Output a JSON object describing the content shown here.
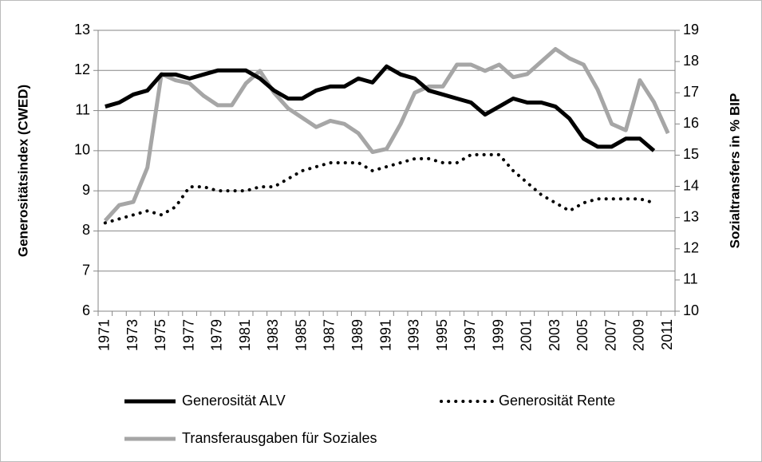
{
  "chart_data": {
    "type": "line",
    "categories": [
      "1971",
      null,
      "1973",
      null,
      "1975",
      null,
      "1977",
      null,
      "1979",
      null,
      "1981",
      null,
      "1983",
      null,
      "1985",
      null,
      "1987",
      null,
      "1989",
      null,
      "1991",
      null,
      "1993",
      null,
      "1995",
      null,
      "1997",
      null,
      "1999",
      null,
      "2001",
      null,
      "2003",
      null,
      "2005",
      null,
      "2007",
      null,
      "2009",
      null,
      "2011"
    ],
    "y_label": "Generositätsindex (CWED)",
    "y2_label": "Sozialtransfers in % BIP",
    "ylim": [
      6,
      13
    ],
    "yticks": [
      6,
      7,
      8,
      9,
      10,
      11,
      12,
      13
    ],
    "y2lim": [
      10,
      19
    ],
    "y2ticks": [
      10,
      11,
      12,
      13,
      14,
      15,
      16,
      17,
      18,
      19
    ],
    "grid": true,
    "legend": "bottom",
    "series": [
      {
        "name": "Generosität ALV",
        "color": "#000000",
        "style": "solid",
        "values": [
          11.1,
          11.2,
          11.4,
          11.5,
          11.9,
          11.9,
          11.8,
          11.9,
          12.0,
          12.0,
          12.0,
          11.8,
          11.5,
          11.3,
          11.3,
          11.5,
          11.6,
          11.6,
          11.8,
          11.7,
          12.1,
          11.9,
          11.8,
          11.5,
          11.4,
          11.3,
          11.2,
          10.9,
          11.1,
          11.3,
          11.2,
          11.2,
          11.1,
          10.8,
          10.3,
          10.1,
          10.1,
          10.3,
          10.3,
          10.0,
          null
        ]
      },
      {
        "name": "Generosität Rente",
        "color": "#000000",
        "style": "dotted",
        "values": [
          8.2,
          8.3,
          8.4,
          8.5,
          8.4,
          8.6,
          9.1,
          9.1,
          9.0,
          9.0,
          9.0,
          9.1,
          9.1,
          9.3,
          9.5,
          9.6,
          9.7,
          9.7,
          9.7,
          9.5,
          9.6,
          9.7,
          9.8,
          9.8,
          9.7,
          9.7,
          9.9,
          9.9,
          9.9,
          9.5,
          9.2,
          8.9,
          8.7,
          8.5,
          8.7,
          8.8,
          8.8,
          8.8,
          8.8,
          8.7,
          null
        ]
      },
      {
        "name": "Transferausgaben für Soziales",
        "color": "#a6a6a6",
        "style": "solid",
        "axis": "y2",
        "values": [
          12.9,
          13.4,
          13.5,
          14.6,
          17.6,
          17.4,
          17.3,
          16.9,
          16.6,
          16.6,
          17.3,
          17.7,
          17.0,
          16.5,
          16.2,
          15.9,
          16.1,
          16.0,
          15.7,
          15.1,
          15.2,
          16.0,
          17.0,
          17.2,
          17.2,
          17.9,
          17.9,
          17.7,
          17.9,
          17.5,
          17.6,
          18.0,
          18.4,
          18.1,
          17.9,
          17.1,
          16.0,
          15.8,
          17.4,
          16.7,
          15.7
        ]
      }
    ]
  }
}
